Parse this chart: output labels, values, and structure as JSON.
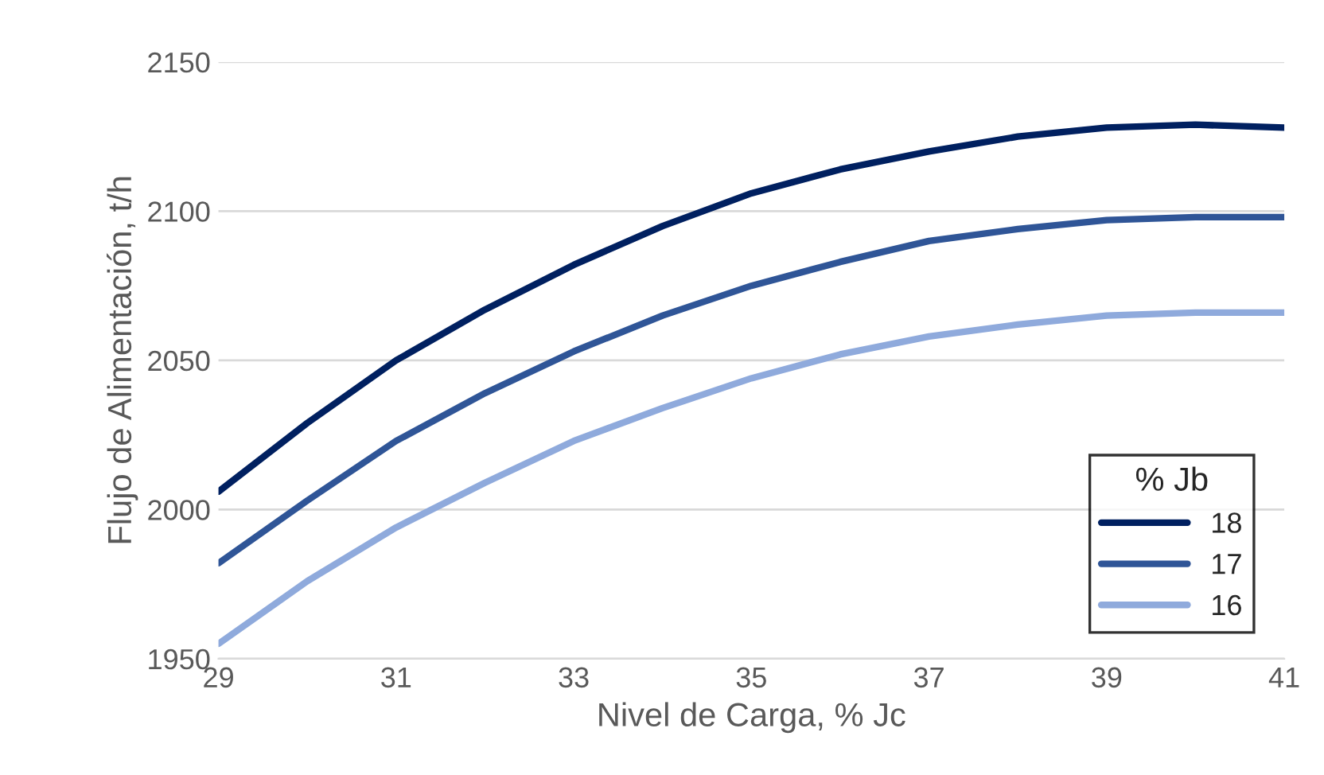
{
  "chart_data": {
    "type": "line",
    "xlabel": "Nivel de Carga, % Jc",
    "ylabel": "Flujo de Alimentación, t/h",
    "legend_title": "% Jb",
    "x": [
      29,
      30,
      31,
      32,
      33,
      34,
      35,
      36,
      37,
      38,
      39,
      40,
      41
    ],
    "series": [
      {
        "name": "18",
        "color": "#002060",
        "values": [
          2006,
          2029,
          2050,
          2067,
          2082,
          2095,
          2106,
          2114,
          2120,
          2125,
          2128,
          2129,
          2128
        ]
      },
      {
        "name": "17",
        "color": "#2f5597",
        "values": [
          1982,
          2003,
          2023,
          2039,
          2053,
          2065,
          2075,
          2083,
          2090,
          2094,
          2097,
          2098,
          2098
        ]
      },
      {
        "name": "16",
        "color": "#8faadc",
        "values": [
          1955,
          1976,
          1994,
          2009,
          2023,
          2034,
          2044,
          2052,
          2058,
          2062,
          2065,
          2066,
          2066
        ]
      }
    ],
    "xlim": [
      29,
      41
    ],
    "xticks": [
      29,
      31,
      33,
      35,
      37,
      39,
      41
    ],
    "ylim": [
      1950,
      2150
    ],
    "yticks": [
      1950,
      2000,
      2050,
      2100,
      2150
    ],
    "grid": "y",
    "legend": "bottom right",
    "marker": "none",
    "line_style": "solid"
  }
}
